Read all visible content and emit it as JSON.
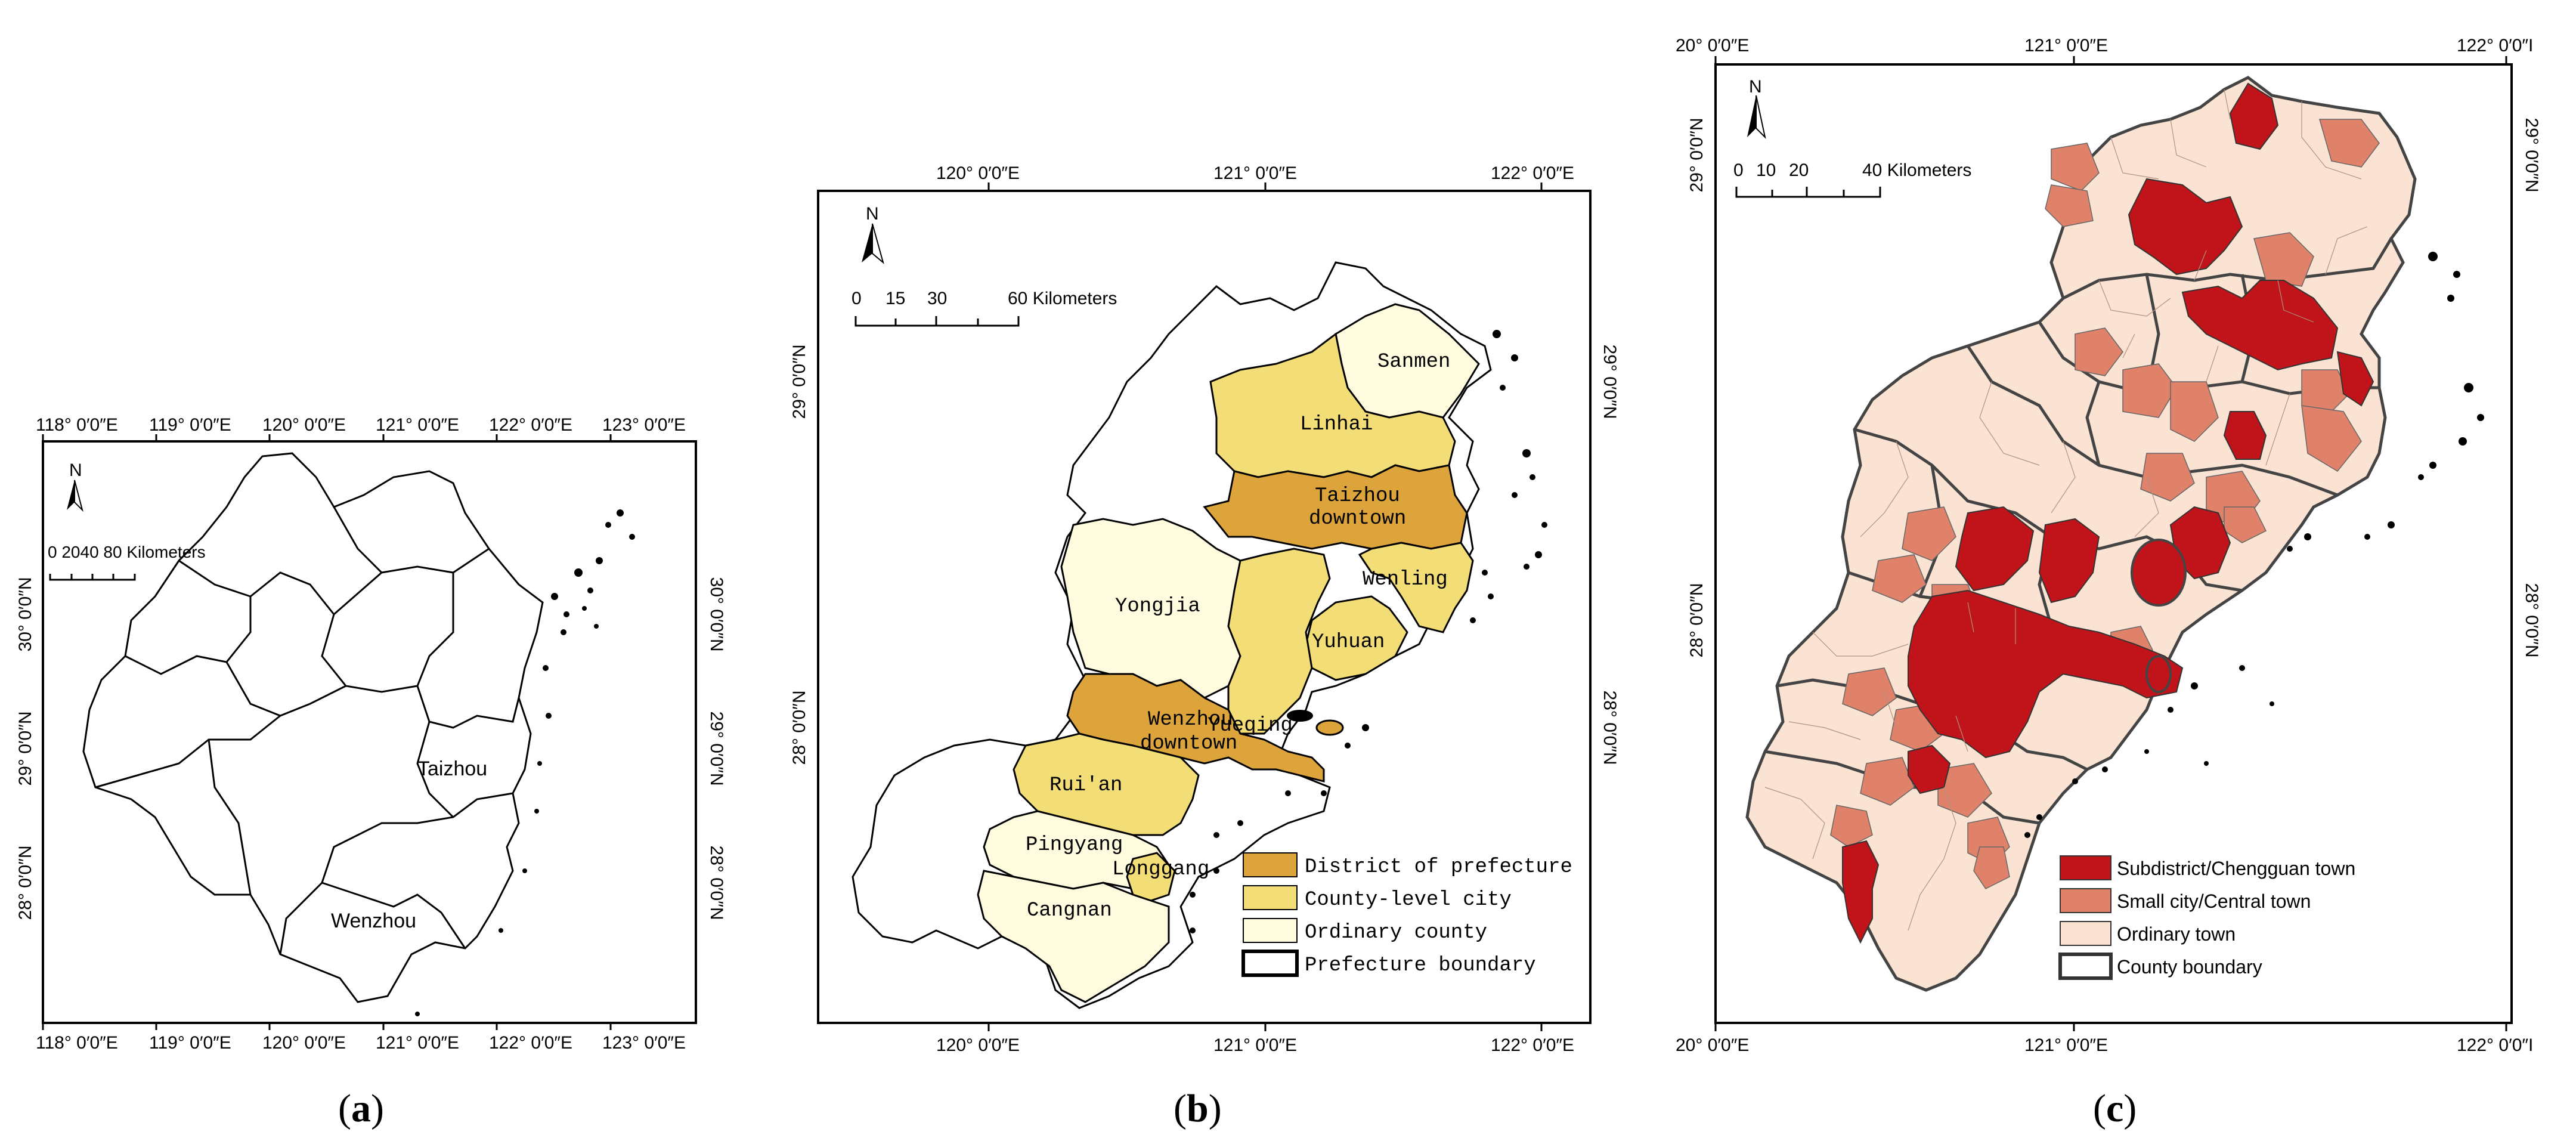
{
  "panels": {
    "a": {
      "caption_letter": "a",
      "top_lon": [
        "118° 0′0″E",
        "119° 0′0″E",
        "120° 0′0″E",
        "121° 0′0″E",
        "122° 0′0″E",
        "123° 0′0″E"
      ],
      "bottom_lon": [
        "118° 0′0″E",
        "119° 0′0″E",
        "120° 0′0″E",
        "121° 0′0″E",
        "122° 0′0″E",
        "123° 0′0″E"
      ],
      "lat": [
        "30° 0′0″N",
        "29° 0′0″N",
        "28° 0′0″N"
      ],
      "north": "N",
      "scale_text": "0 2040    80 Kilometers",
      "places": [
        "Taizhou",
        "Wenzhou"
      ]
    },
    "b": {
      "caption_letter": "b",
      "top_lon": [
        "120° 0′0″E",
        "121° 0′0″E",
        "122° 0′0″E"
      ],
      "bottom_lon": [
        "120° 0′0″E",
        "121° 0′0″E",
        "122° 0′0″E"
      ],
      "lat": [
        "29° 0′0″N",
        "28° 0′0″N"
      ],
      "north": "N",
      "scale_numbers": [
        "0",
        "15",
        "30",
        "60 Kilometers"
      ],
      "places": [
        "Sanmen",
        "Linhai",
        "Taizhou",
        "downtown",
        "Wenling",
        "Yongjia",
        "Yuhuan",
        "Yueqing",
        "Wenzhou",
        "downtown",
        "Rui'an",
        "Pingyang",
        "Longgang",
        "Cangnan"
      ],
      "legend": [
        {
          "label": "District of prefecture",
          "color": "#DDA43B"
        },
        {
          "label": "County-level city",
          "color": "#F2DD76"
        },
        {
          "label": "Ordinary county",
          "color": "#FFFBDF"
        },
        {
          "label": "Prefecture boundary",
          "color": "#ffffff"
        }
      ]
    },
    "c": {
      "caption_letter": "c",
      "top_lon": [
        "20° 0′0″E",
        "121° 0′0″E",
        "122° 0′0″I"
      ],
      "bottom_lon": [
        "20° 0′0″E",
        "121° 0′0″E",
        "122° 0′0″I"
      ],
      "lat": [
        "29° 0′0″N",
        "28° 0′0″N"
      ],
      "north": "N",
      "scale_numbers": [
        "0",
        "10",
        "20",
        "40 Kilometers"
      ],
      "legend": [
        {
          "label": "Subdistrict/Chengguan town",
          "color": "#C0141A"
        },
        {
          "label": "Small city/Central town",
          "color": "#E0826A"
        },
        {
          "label": "Ordinary town",
          "color": "#FBE3D3"
        },
        {
          "label": "County boundary",
          "color": "#ffffff"
        }
      ]
    }
  }
}
